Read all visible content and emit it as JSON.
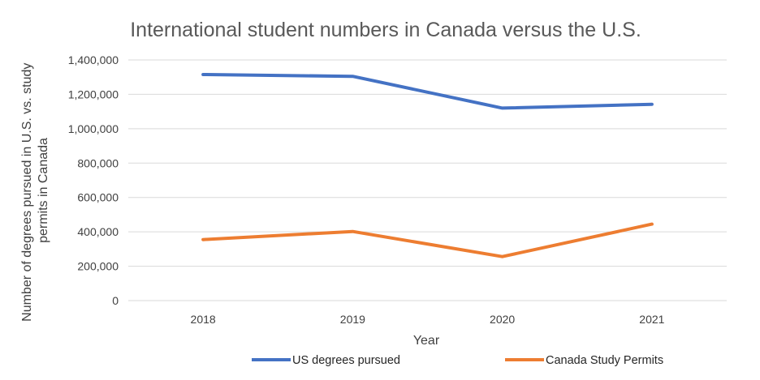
{
  "chart_data": {
    "type": "line",
    "title": "International student numbers in Canada versus the U.S.",
    "xlabel": "Year",
    "ylabel_lines": [
      "Number of degrees pursued in U.S. vs. study",
      "permits in Canada"
    ],
    "categories": [
      "2018",
      "2019",
      "2020",
      "2021"
    ],
    "ylim": [
      0,
      1400000
    ],
    "yticks": [
      0,
      200000,
      400000,
      600000,
      800000,
      1000000,
      1200000,
      1400000
    ],
    "ytick_labels": [
      "0",
      "200,000",
      "400,000",
      "600,000",
      "800,000",
      "1,000,000",
      "1,200,000",
      "1,400,000"
    ],
    "grid": true,
    "legend_position": "bottom",
    "series": [
      {
        "name": "US degrees pursued",
        "color": "#4472C4",
        "values": [
          1315000,
          1305000,
          1120000,
          1142000
        ]
      },
      {
        "name": "Canada Study Permits",
        "color": "#ED7D31",
        "values": [
          355000,
          402000,
          256000,
          445000
        ]
      }
    ]
  }
}
